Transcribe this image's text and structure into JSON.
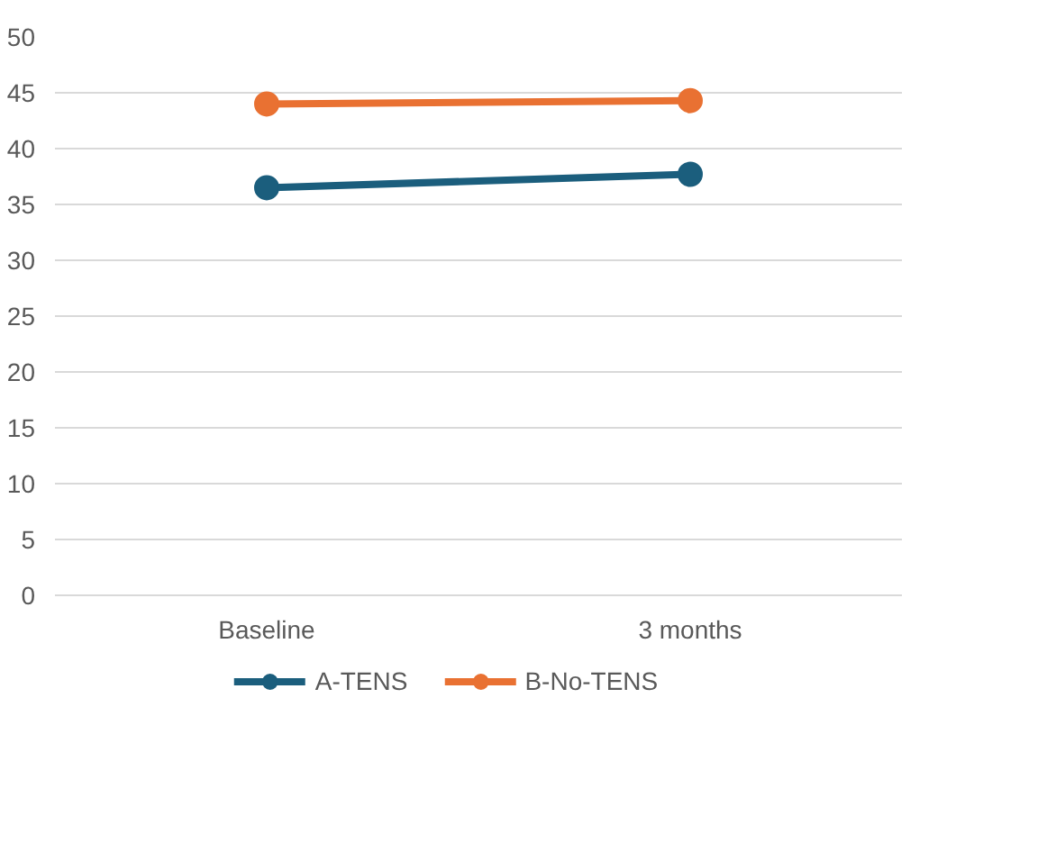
{
  "chart_data": {
    "type": "line",
    "categories": [
      "Baseline",
      "3 months"
    ],
    "series": [
      {
        "name": "A-TENS",
        "color": "#1b5e7d",
        "values": [
          36.5,
          37.7
        ]
      },
      {
        "name": "B-No-TENS",
        "color": "#e97132",
        "values": [
          44.0,
          44.3
        ]
      }
    ],
    "ylim": [
      0,
      50
    ],
    "yticks": [
      0,
      5,
      10,
      15,
      20,
      25,
      30,
      35,
      40,
      45,
      50
    ],
    "grid": "y",
    "legend": "bottom",
    "marker": "circle",
    "line_style": "solid"
  }
}
